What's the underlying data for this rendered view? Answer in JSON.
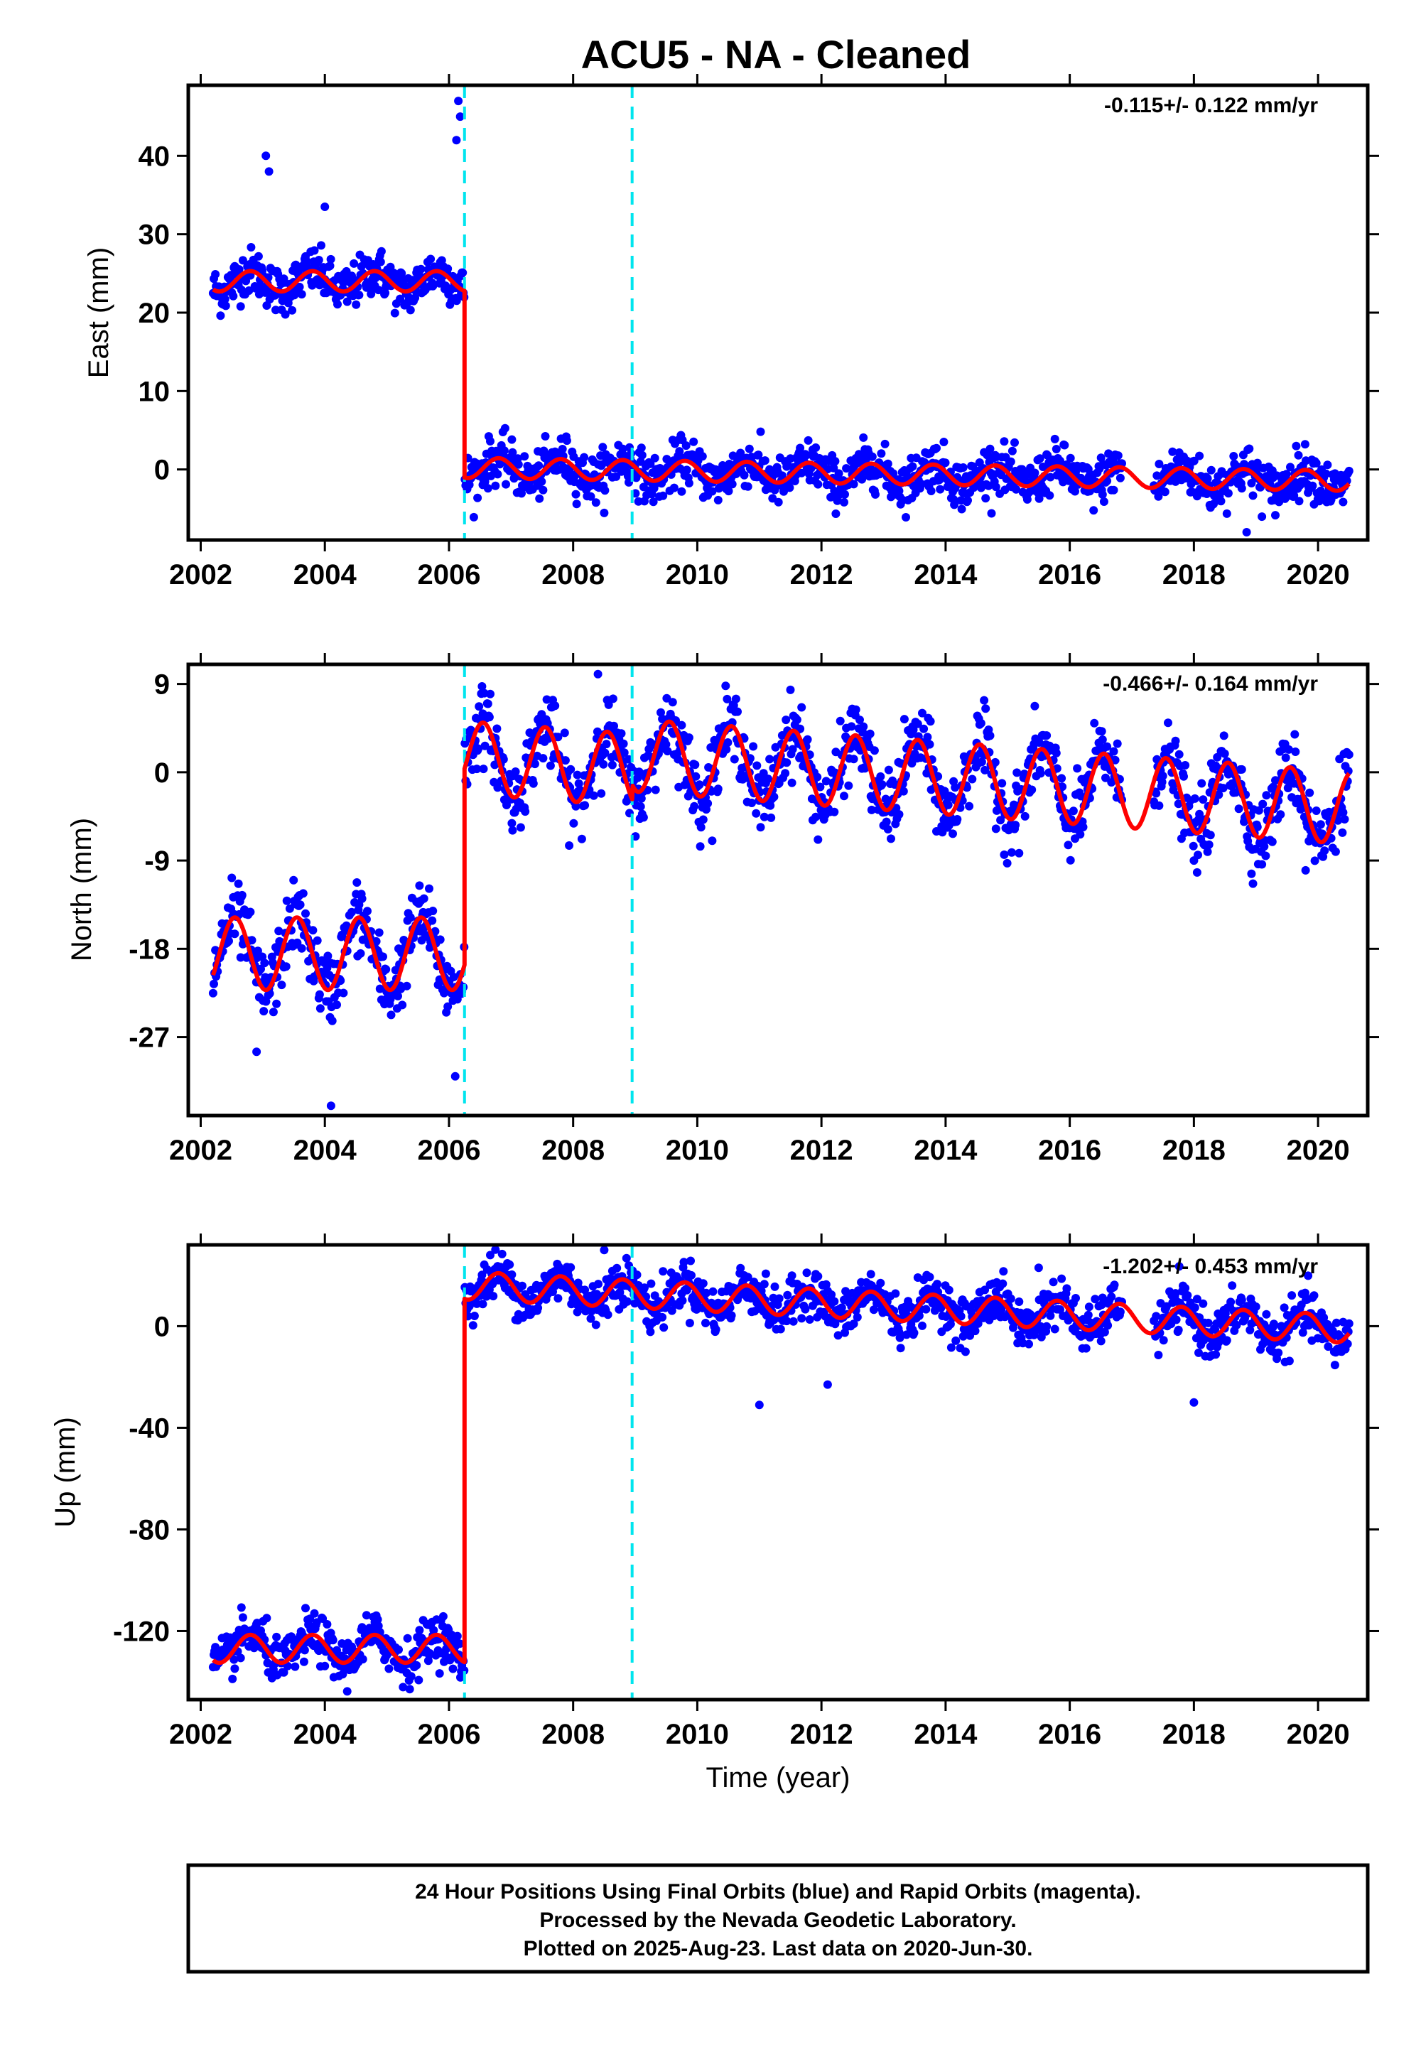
{
  "chart_data": {
    "type": "scatter",
    "title": "ACU5  - NA - Cleaned",
    "xlabel": "Time (year)",
    "xlim": [
      2001.8,
      2020.8
    ],
    "x_ticks": [
      "2002",
      "2004",
      "2006",
      "2008",
      "2010",
      "2012",
      "2014",
      "2016",
      "2018",
      "2020"
    ],
    "event_lines_x": [
      2006.25,
      2008.95
    ],
    "colors": {
      "data": "#0000ff",
      "model": "#ff0000",
      "event": "#00e5ee",
      "frame": "#000000"
    },
    "panels": [
      {
        "ylabel": "East (mm)",
        "ylim": [
          -9,
          49
        ],
        "y_ticks": [
          "40",
          "30",
          "20",
          "10",
          "0"
        ],
        "y_tick_values": [
          40,
          30,
          20,
          10,
          0
        ],
        "rate": "-0.115+/- 0.122 mm/yr",
        "model": {
          "pre_step": 24.0,
          "post_step": 0.2,
          "trend_mm_per_yr": -0.115,
          "annual_amplitude": 1.3,
          "phase": 0.55,
          "offset_2008_95": 0.0
        },
        "scatter": {
          "noise": 1.5
        },
        "outliers": [
          [
            2003.05,
            40
          ],
          [
            2003.1,
            38
          ],
          [
            2004.0,
            33.5
          ],
          [
            2006.15,
            47
          ],
          [
            2006.18,
            45
          ],
          [
            2006.12,
            42
          ],
          [
            2018.85,
            -8
          ]
        ]
      },
      {
        "ylabel": "North (mm)",
        "ylim": [
          -35,
          11
        ],
        "y_ticks": [
          "9",
          "0",
          "-9",
          "-18",
          "-27"
        ],
        "y_tick_values": [
          9,
          0,
          -9,
          -18,
          -27
        ],
        "rate": "-0.466+/- 0.164 mm/yr",
        "model": {
          "pre_step": -18.5,
          "post_step": 1.5,
          "trend_mm_per_yr": -0.466,
          "annual_amplitude": 3.7,
          "phase": 0.3,
          "offset_2008_95": 1.5
        },
        "scatter": {
          "noise": 1.8
        },
        "outliers": [
          [
            2004.1,
            -34
          ],
          [
            2002.9,
            -28.5
          ],
          [
            2006.1,
            -31
          ],
          [
            2008.4,
            10
          ],
          [
            2019.8,
            -10
          ],
          [
            2018.0,
            -9
          ]
        ]
      },
      {
        "ylabel": "Up (mm)",
        "ylim": [
          -147,
          32
        ],
        "y_ticks": [
          "0",
          "-40",
          "-80",
          "-120"
        ],
        "y_tick_values": [
          0,
          -40,
          -80,
          -120
        ],
        "rate": "-1.202+/- 0.453 mm/yr",
        "model": {
          "pre_step": -127.0,
          "post_step": 16.0,
          "trend_mm_per_yr": -1.202,
          "annual_amplitude": 5.5,
          "phase": 0.55,
          "offset_2008_95": 0.0
        },
        "scatter": {
          "noise": 4.5
        },
        "outliers": [
          [
            2011.0,
            -31
          ],
          [
            2012.1,
            -23
          ],
          [
            2018.0,
            -30
          ],
          [
            2015.5,
            23
          ],
          [
            2008.5,
            30
          ]
        ]
      }
    ]
  },
  "footer": {
    "line1": "24 Hour Positions Using Final Orbits (blue) and Rapid Orbits (magenta).",
    "line2": "Processed by the Nevada Geodetic Laboratory.",
    "line3": "Plotted on 2025-Aug-23. Last data on 2020-Jun-30."
  }
}
